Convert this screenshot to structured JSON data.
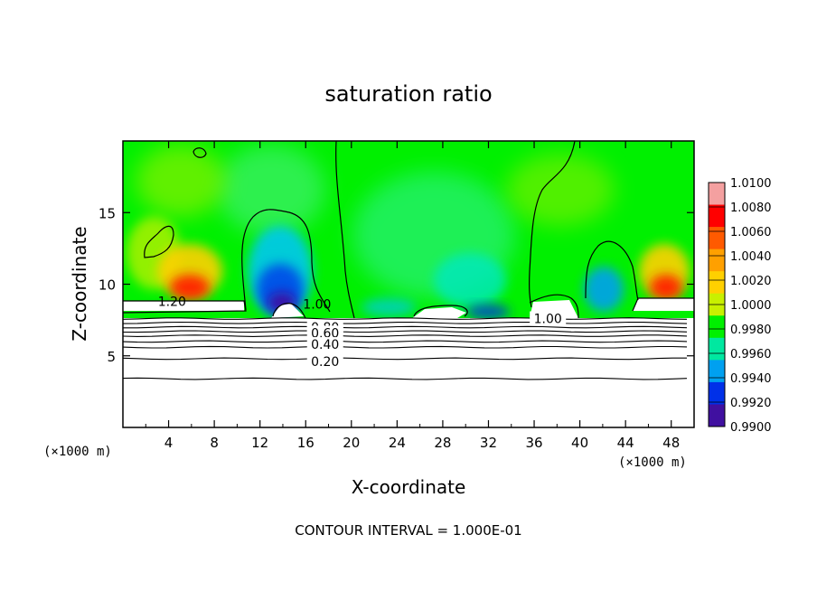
{
  "chart_data": {
    "type": "heatmap",
    "title": "saturation ratio",
    "xlabel": "X-coordinate",
    "ylabel": "Z-coordinate",
    "x_unit": "(×1000 m)",
    "z_unit": "(×1000 m)",
    "xlim": [
      0,
      50
    ],
    "ylim": [
      0,
      20
    ],
    "x_ticks": [
      4,
      8,
      12,
      16,
      20,
      24,
      28,
      32,
      36,
      40,
      44,
      48
    ],
    "y_ticks": [
      5,
      10,
      15
    ],
    "colorbar": {
      "min": 0.99,
      "max": 1.01,
      "labels": [
        "1.0100",
        "1.0080",
        "1.0060",
        "1.0040",
        "1.0020",
        "1.0000",
        "0.9980",
        "0.9960",
        "0.9940",
        "0.9920",
        "0.9900"
      ],
      "colors": [
        "#f4a0a0",
        "#ff0000",
        "#ff5a00",
        "#ffa000",
        "#ffd000",
        "#c8f000",
        "#00f000",
        "#00e8a0",
        "#00a0f0",
        "#0030e8",
        "#4010a0"
      ]
    },
    "contour_interval_note": "CONTOUR INTERVAL = 1.000E-01",
    "contour_labels": [
      {
        "text": "1.20",
        "x": 4.3,
        "z": 8.8
      },
      {
        "text": "1.00",
        "x": 17.0,
        "z": 8.6
      },
      {
        "text": "1.00",
        "x": 37.2,
        "z": 7.6
      },
      {
        "text": "0.80",
        "x": 17.7,
        "z": 7.0
      },
      {
        "text": "0.60",
        "x": 17.7,
        "z": 6.6
      },
      {
        "text": "0.40",
        "x": 17.7,
        "z": 5.8
      },
      {
        "text": "0.20",
        "x": 17.7,
        "z": 4.6
      }
    ],
    "contour_levels_z": [
      3.4,
      4.8,
      5.6,
      6.0,
      6.4,
      6.7,
      7.0,
      7.3,
      7.6
    ]
  }
}
